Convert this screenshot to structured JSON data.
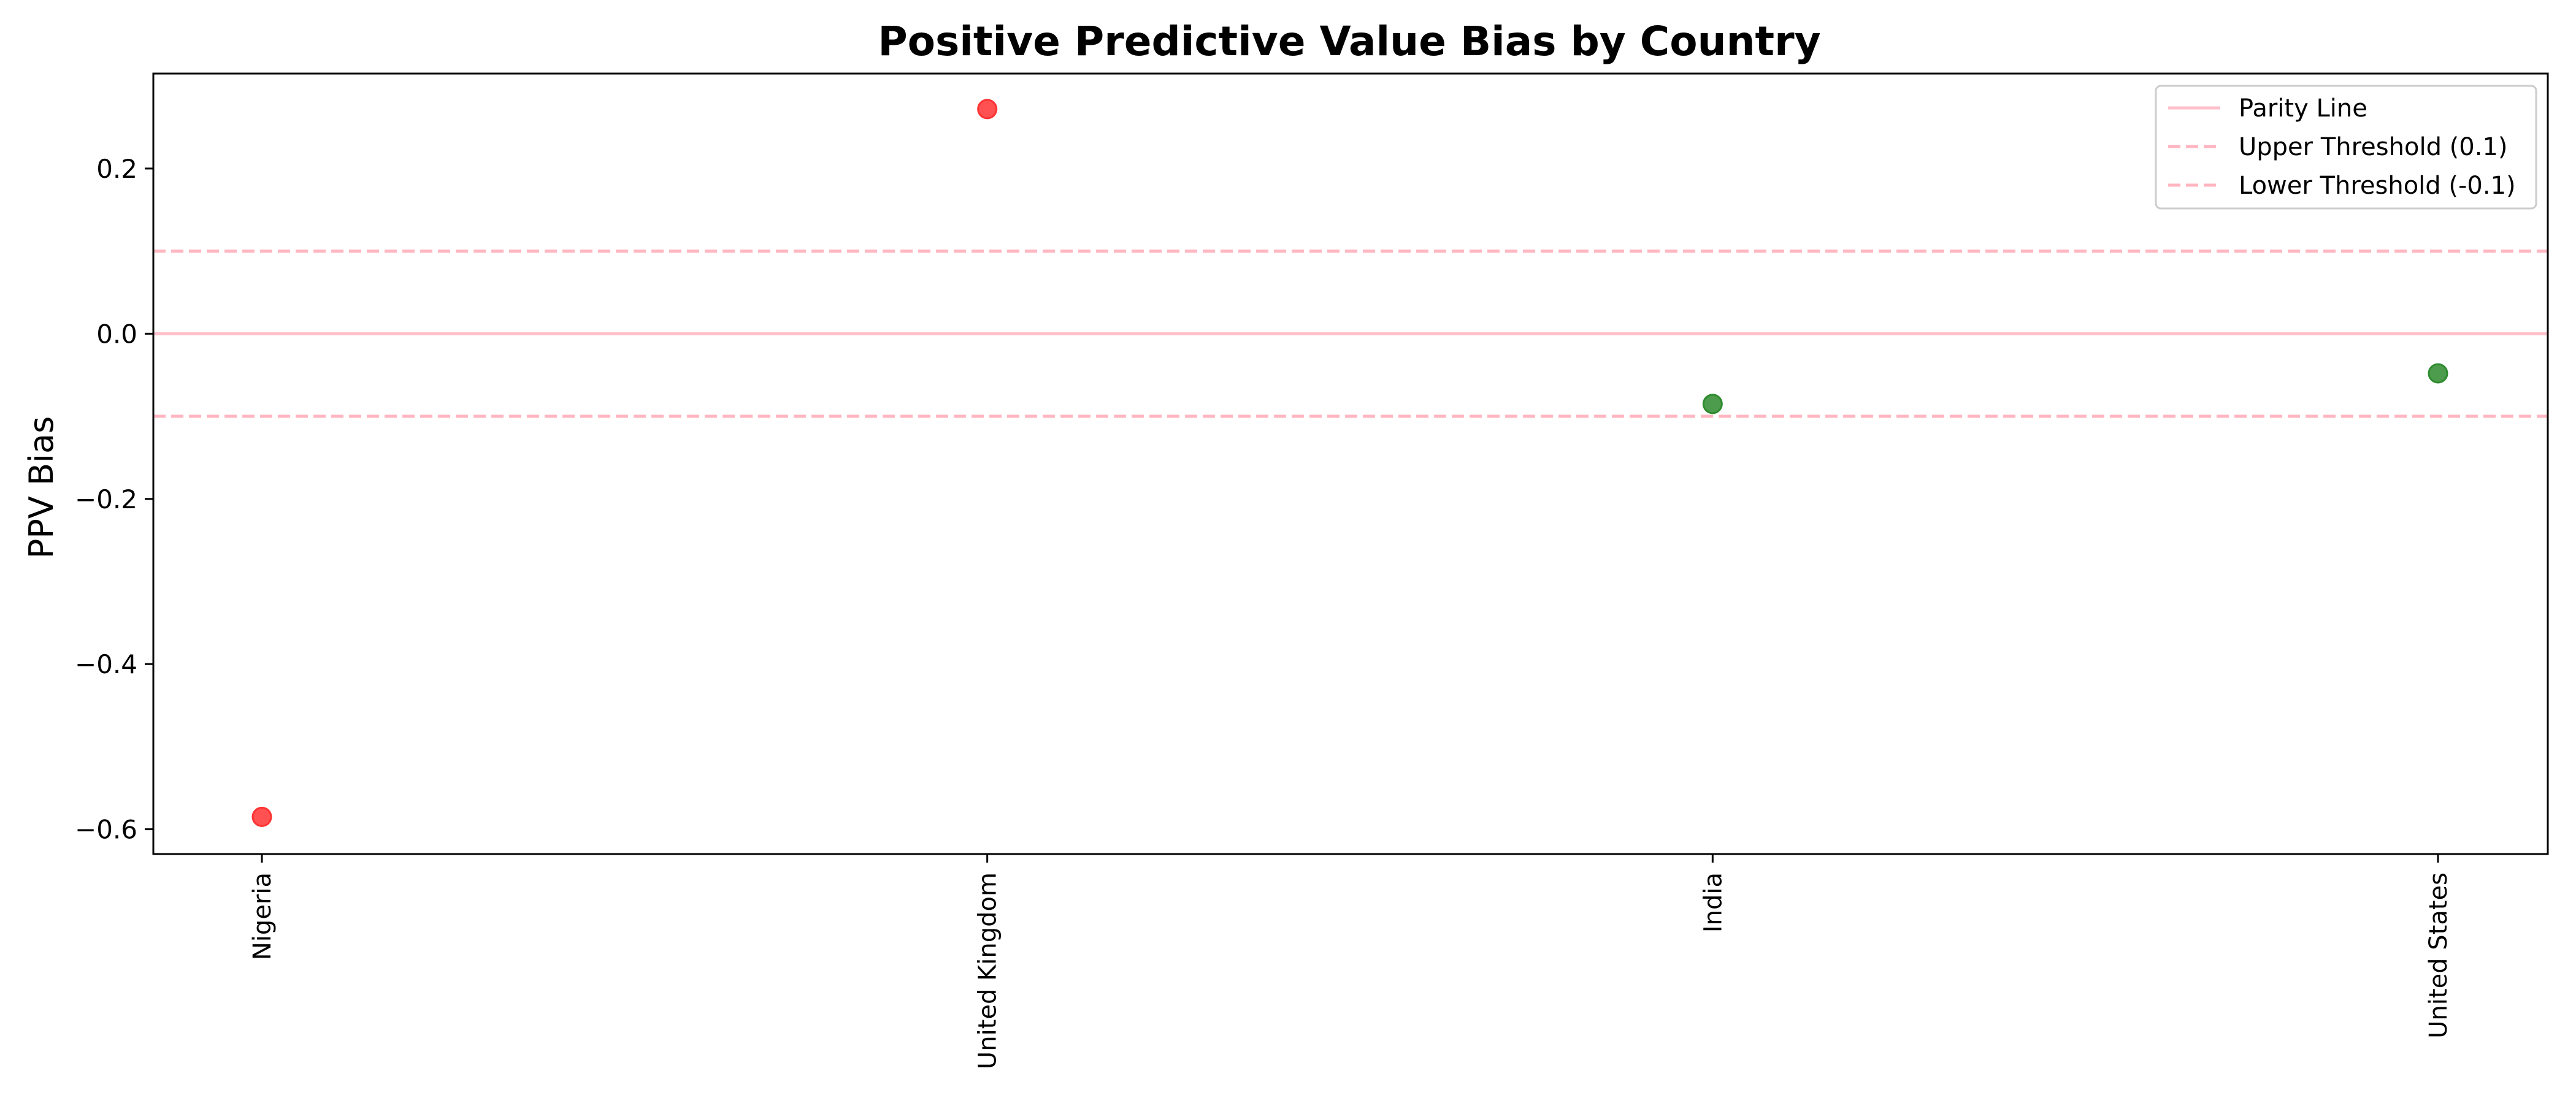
{
  "chart_data": {
    "type": "scatter",
    "title": "Positive Predictive Value Bias by Country",
    "xlabel": "",
    "ylabel": "PPV Bias",
    "categories": [
      "Nigeria",
      "United Kingdom",
      "India",
      "United States"
    ],
    "values": [
      -0.585,
      0.272,
      -0.085,
      -0.048
    ],
    "point_colors": [
      "#ff3333",
      "#ff3333",
      "#2e8b2e",
      "#2e8b2e"
    ],
    "ylim": [
      -0.63,
      0.315
    ],
    "yticks": [
      -0.6,
      -0.4,
      -0.2,
      0.0,
      0.2
    ],
    "ytick_labels": [
      "−0.6",
      "−0.4",
      "−0.2",
      "0.0",
      "0.2"
    ],
    "reference_lines": [
      {
        "name": "Parity Line",
        "y": 0.0,
        "style": "solid",
        "color": "#ffc0cb"
      },
      {
        "name": "Upper Threshold (0.1)",
        "y": 0.1,
        "style": "dashed",
        "color": "#ffb6c1"
      },
      {
        "name": "Lower Threshold (-0.1)",
        "y": -0.1,
        "style": "dashed",
        "color": "#ffb6c1"
      }
    ],
    "legend_position": "top-right",
    "grid": false
  }
}
